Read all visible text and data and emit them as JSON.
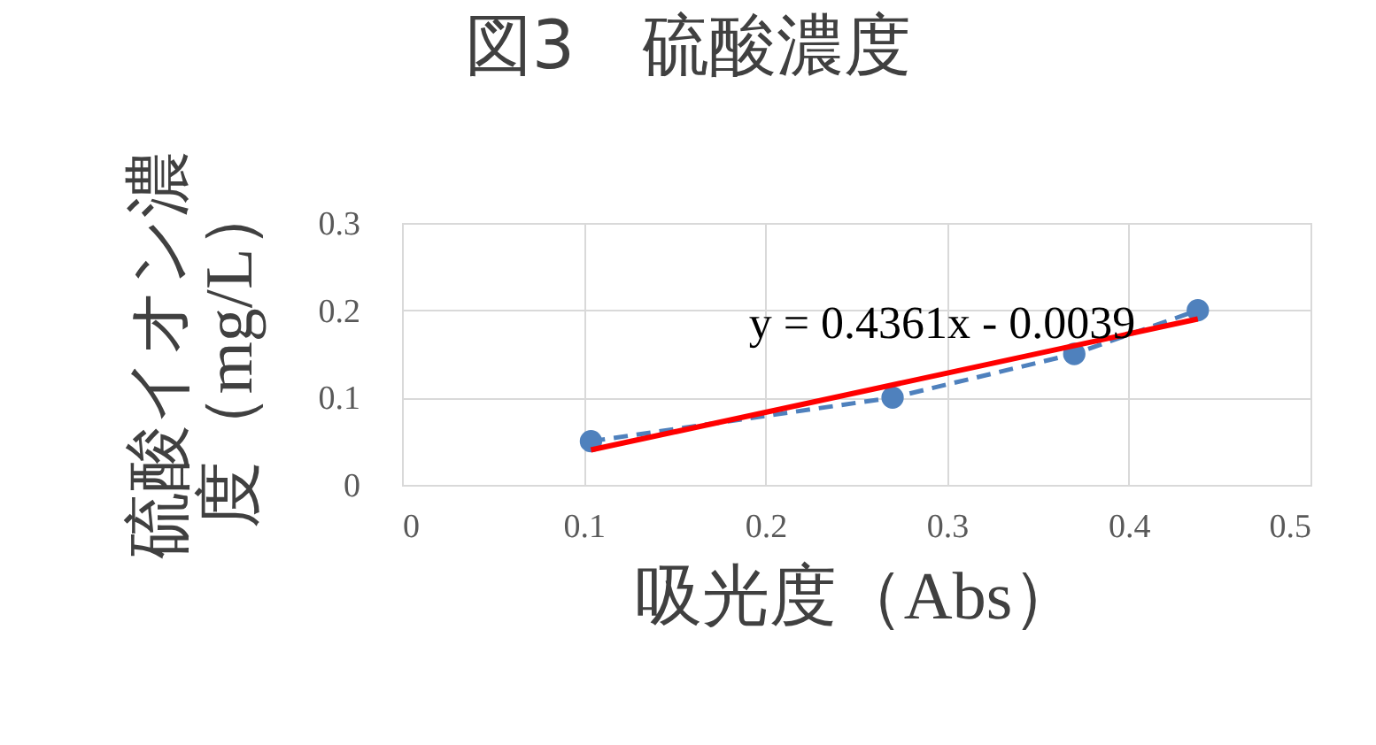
{
  "chart_data": {
    "type": "line",
    "title": "図3　硫酸濃度",
    "xlabel": "吸光度（Abs）",
    "ylabel": "硫酸イオン濃度（mg/L）",
    "xlim": [
      0,
      0.5
    ],
    "xticks": [
      0,
      0.1,
      0.2,
      0.3,
      0.4,
      0.5
    ],
    "ylim": [
      0,
      0.3
    ],
    "yticks": [
      0,
      0.1,
      0.2,
      0.3
    ],
    "grid": true,
    "series": [
      {
        "color": "#4f81bd",
        "marker": "circle",
        "line_style": "dashed",
        "x": [
          0.104,
          0.27,
          0.37,
          0.438
        ],
        "values": [
          0.05,
          0.1,
          0.15,
          0.2
        ]
      },
      {
        "color": "#ff0000",
        "marker": "none",
        "line_style": "solid",
        "x": [
          0.104,
          0.438
        ],
        "values": [
          0.04,
          0.19
        ]
      }
    ],
    "annotations": [
      "y = 0.4361x - 0.0039"
    ]
  }
}
